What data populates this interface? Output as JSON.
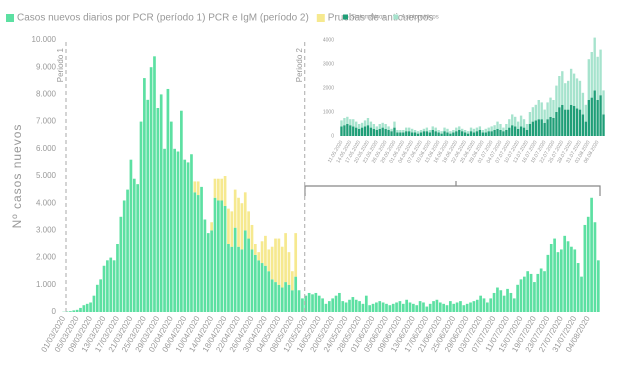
{
  "chart_data": [
    {
      "type": "bar",
      "stacked": true,
      "y_label": "Nº casos nuevos",
      "annotations": [
        "Periodo 1",
        "Periodo 2"
      ],
      "categories": [
        "01/03/2020",
        null,
        null,
        null,
        "05/03/2020",
        null,
        null,
        null,
        "09/03/2020",
        null,
        null,
        null,
        "13/03/2020",
        null,
        null,
        null,
        "17/03/2020",
        null,
        null,
        null,
        "21/03/2020",
        null,
        null,
        null,
        "25/03/2020",
        null,
        null,
        null,
        "29/03/2020",
        null,
        null,
        null,
        "02/04/2020",
        null,
        null,
        null,
        "06/04/2020",
        null,
        null,
        null,
        "10/04/2020",
        null,
        null,
        null,
        "14/04/2020",
        null,
        null,
        null,
        "18/04/2020",
        null,
        null,
        null,
        "22/04/2020",
        null,
        null,
        null,
        "26/04/2020",
        null,
        null,
        null,
        "30/04/2020",
        null,
        null,
        null,
        "04/05/2020",
        null,
        null,
        null,
        "08/05/2020",
        null,
        null,
        null,
        "12/05/2020",
        null,
        null,
        null,
        "16/05/2020",
        null,
        null,
        null,
        "20/05/2020",
        null,
        null,
        null,
        "24/05/2020",
        null,
        null,
        null,
        "28/05/2020",
        null,
        null,
        null,
        "01/06/2020",
        null,
        null,
        null,
        "05/06/2020",
        null,
        null,
        null,
        "09/06/2020",
        null,
        null,
        null,
        "13/06/2020",
        null,
        null,
        null,
        "17/06/2020",
        null,
        null,
        null,
        "21/06/2020",
        null,
        null,
        null,
        "25/06/2020",
        null,
        null,
        null,
        "29/06/2020",
        null,
        null,
        null,
        "03/07/2020",
        null,
        null,
        null,
        "07/07/2020",
        null,
        null,
        null,
        "11/07/2020",
        null,
        null,
        null,
        "15/07/2020",
        null,
        null,
        null,
        "19/07/2020",
        null,
        null,
        null,
        "23/07/2020",
        null,
        null,
        null,
        "27/07/2020",
        null,
        null,
        null,
        "31/07/2020",
        null,
        null,
        null,
        "04/08/2020",
        null,
        null,
        null
      ],
      "series": [
        {
          "name": "Casos nuevos diarios por PCR (período 1) PCR e IgM (período 2)",
          "color": "#5ce0a2",
          "values": [
            10,
            20,
            30,
            60,
            80,
            150,
            250,
            300,
            350,
            600,
            1000,
            1200,
            1700,
            1900,
            2000,
            1900,
            2500,
            3500,
            4100,
            4500,
            5600,
            4900,
            4700,
            7000,
            8600,
            7800,
            9000,
            9400,
            7500,
            8000,
            6000,
            8200,
            7000,
            6000,
            5900,
            7400,
            5600,
            5500,
            5800,
            4400,
            4300,
            4600,
            3400,
            2900,
            3000,
            4200,
            4100,
            4100,
            3900,
            2500,
            2400,
            3100,
            2400,
            2300,
            3000,
            2700,
            2300,
            2100,
            1900,
            1800,
            1700,
            1500,
            1200,
            1100,
            1000,
            900,
            1100,
            1000,
            800,
            1300,
            800,
            500,
            600,
            700,
            650,
            700,
            600,
            500,
            300,
            400,
            500,
            600,
            700,
            400,
            350,
            450,
            550,
            450,
            400,
            300,
            600,
            250,
            300,
            350,
            400,
            350,
            300,
            250,
            300,
            350,
            400,
            300,
            450,
            350,
            300,
            250,
            400,
            350,
            200,
            300,
            400,
            450,
            350,
            300,
            250,
            400,
            300,
            350,
            400,
            250,
            300,
            350,
            400,
            450,
            600,
            500,
            350,
            500,
            700,
            900,
            800,
            600,
            850,
            700,
            500,
            1000,
            1200,
            1300,
            1500,
            1400,
            1100,
            1400,
            1600,
            1500,
            2100,
            2500,
            2700,
            2200,
            2300,
            2800,
            2600,
            2400,
            2300,
            1800,
            1300,
            3200,
            3500,
            4200,
            3300,
            1900
          ]
        },
        {
          "name": "Pruebas de anticuerpos",
          "color": "#f6e98f",
          "values": [
            0,
            0,
            0,
            0,
            0,
            0,
            0,
            0,
            0,
            0,
            0,
            0,
            0,
            0,
            0,
            0,
            0,
            0,
            0,
            0,
            0,
            0,
            0,
            0,
            0,
            0,
            0,
            0,
            0,
            0,
            0,
            0,
            0,
            0,
            0,
            0,
            0,
            0,
            0,
            400,
            500,
            0,
            0,
            0,
            300,
            700,
            800,
            800,
            1100,
            1300,
            1300,
            1400,
            1800,
            1700,
            1400,
            1000,
            900,
            400,
            300,
            800,
            1100,
            800,
            1200,
            1600,
            1700,
            1500,
            1800,
            1200,
            700,
            1600,
            0,
            0,
            0,
            0,
            0,
            0,
            0,
            0,
            0,
            0,
            0,
            0,
            0,
            0,
            0,
            0,
            0,
            0,
            0,
            0,
            0,
            0,
            0,
            0,
            0,
            0,
            0,
            0,
            0,
            0,
            0,
            0,
            0,
            0,
            0,
            0,
            0,
            0,
            0,
            0,
            0,
            0,
            0,
            0,
            0,
            0,
            0,
            0,
            0,
            0,
            0,
            0,
            0,
            0,
            0,
            0,
            0,
            0,
            0,
            0,
            0,
            0,
            0,
            0,
            0,
            0,
            0,
            0,
            0,
            0,
            0,
            0,
            0,
            0,
            0,
            0,
            0,
            0,
            0,
            0,
            0,
            0,
            0,
            0,
            0,
            0,
            0,
            0,
            0,
            0
          ]
        }
      ],
      "ylim": [
        0,
        10000
      ],
      "yticks": [
        0,
        {
          "value": 1000,
          "label": "1.000"
        },
        {
          "value": 2000,
          "label": "2.000"
        },
        {
          "value": 3000,
          "label": "3.000"
        },
        {
          "value": 4000,
          "label": "4.000"
        },
        {
          "value": 5000,
          "label": "5.000"
        },
        {
          "value": 6000,
          "label": "6.000"
        },
        {
          "value": 7000,
          "label": "7.000"
        },
        {
          "value": 8000,
          "label": "8.000"
        },
        {
          "value": 9000,
          "label": "9.000"
        },
        {
          "value": 10000,
          "label": "10.000"
        }
      ],
      "grid": false
    },
    {
      "type": "bar",
      "stacked": true,
      "categories": [
        "11.05.2020",
        null,
        null,
        "14.05.2020",
        null,
        null,
        "17.05.2020",
        null,
        null,
        "20.05.2020",
        null,
        null,
        "23.05.2020",
        null,
        null,
        "26.05.2020",
        null,
        null,
        "29.05.2020",
        null,
        null,
        "01.06.2020",
        null,
        null,
        "04.06.2020",
        null,
        null,
        "07.06.2020",
        null,
        null,
        "10.06.2020",
        null,
        null,
        "13.06.2020",
        null,
        null,
        "16.06.2020",
        null,
        null,
        "19.06.2020",
        null,
        null,
        "22.06.2020",
        null,
        null,
        "25.06.2020",
        null,
        null,
        "28.06.2020",
        null,
        null,
        "01.07.2020",
        null,
        null,
        "04.07.2020",
        null,
        null,
        "07.07.2020",
        null,
        null,
        "10.07.2020",
        null,
        null,
        "13.07.2020",
        null,
        null,
        "16.07.2020",
        null,
        null,
        "19.07.2020",
        null,
        null,
        "22.07.2020",
        null,
        null,
        "25.07.2020",
        null,
        null,
        "28.07.2020",
        null,
        null,
        "31.07.2020",
        null,
        null,
        "03.08.2020",
        null,
        null,
        "06.08.2020",
        null,
        null
      ],
      "series": [
        {
          "name": "Sintomáticos",
          "color": "#1f9e77",
          "values": [
            400,
            450,
            500,
            450,
            400,
            350,
            300,
            350,
            400,
            450,
            350,
            300,
            250,
            300,
            350,
            300,
            250,
            200,
            350,
            150,
            150,
            150,
            200,
            200,
            150,
            150,
            100,
            150,
            200,
            200,
            150,
            250,
            200,
            150,
            100,
            200,
            150,
            100,
            150,
            200,
            250,
            200,
            150,
            100,
            200,
            150,
            200,
            250,
            150,
            150,
            200,
            200,
            250,
            300,
            250,
            200,
            250,
            350,
            450,
            400,
            300,
            400,
            350,
            250,
            500,
            600,
            650,
            700,
            700,
            550,
            700,
            800,
            750,
            1000,
            1200,
            1300,
            1100,
            1100,
            1300,
            1250,
            1150,
            1100,
            900,
            600,
            1500,
            1600,
            1900,
            1500,
            1700,
            900
          ]
        },
        {
          "name": "Asintomáticos",
          "color": "#a6e3cd",
          "values": [
            250,
            300,
            300,
            250,
            300,
            250,
            200,
            200,
            250,
            300,
            250,
            200,
            150,
            200,
            200,
            200,
            150,
            100,
            250,
            100,
            100,
            100,
            150,
            150,
            150,
            100,
            100,
            100,
            100,
            150,
            100,
            150,
            150,
            100,
            100,
            150,
            150,
            100,
            100,
            150,
            150,
            100,
            100,
            100,
            150,
            150,
            150,
            150,
            100,
            150,
            150,
            200,
            200,
            300,
            250,
            150,
            250,
            350,
            450,
            400,
            300,
            450,
            350,
            250,
            500,
            600,
            650,
            800,
            700,
            550,
            700,
            800,
            750,
            1100,
            1300,
            1400,
            1100,
            1200,
            1500,
            1350,
            1250,
            1200,
            900,
            700,
            1700,
            1900,
            2200,
            1800,
            1900,
            1000
          ]
        }
      ],
      "ylim": [
        0,
        4000
      ],
      "yticks": [
        0,
        1000,
        2000,
        3000,
        4000
      ],
      "grid": false
    }
  ]
}
